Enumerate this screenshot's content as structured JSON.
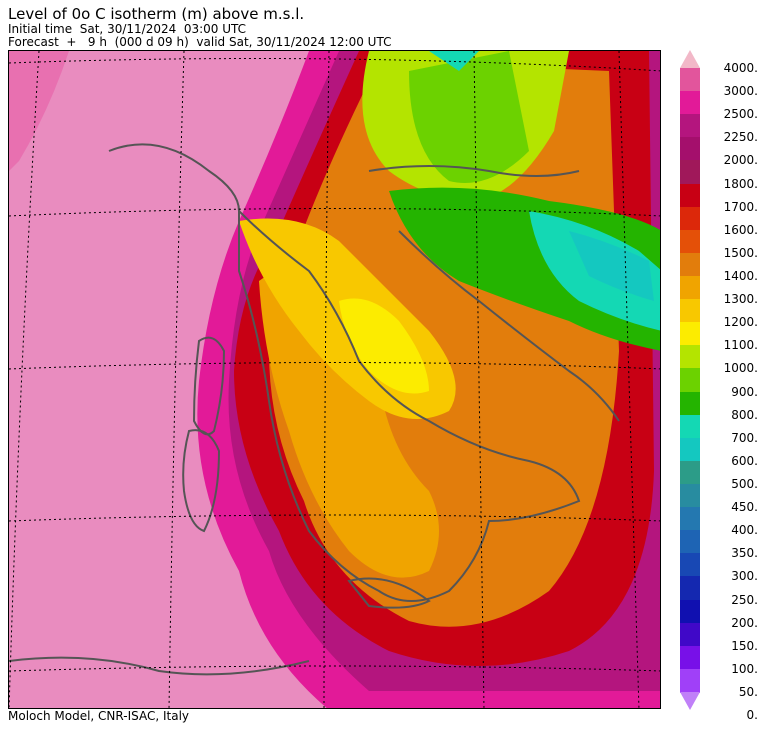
{
  "header": {
    "title": "Level of 0o C isotherm (m) above m.s.l.",
    "initial_time": "Initial time  Sat, 30/11/2024  03:00 UTC",
    "forecast": "Forecast  +   9 h  (000 d 09 h)  valid Sat, 30/11/2024 12:00 UTC"
  },
  "footer": {
    "credit": "Moloch Model, CNR-ISAC, Italy"
  },
  "legend": {
    "levels": [
      {
        "label": "4000.",
        "color": "#f2b8c8"
      },
      {
        "label": "3000.",
        "color": "#e2559c"
      },
      {
        "label": "2500.",
        "color": "#e21a98"
      },
      {
        "label": "2250.",
        "color": "#b4157e"
      },
      {
        "label": "2000.",
        "color": "#a40f6c"
      },
      {
        "label": "1800.",
        "color": "#a0185a"
      },
      {
        "label": "1700.",
        "color": "#c80014"
      },
      {
        "label": "1600.",
        "color": "#dc280a"
      },
      {
        "label": "1500.",
        "color": "#e45008"
      },
      {
        "label": "1400.",
        "color": "#e27d0c"
      },
      {
        "label": "1300.",
        "color": "#f0a400"
      },
      {
        "label": "1200.",
        "color": "#f8c800"
      },
      {
        "label": "1100.",
        "color": "#fcec00"
      },
      {
        "label": "1000.",
        "color": "#b4e400"
      },
      {
        "label": "900.",
        "color": "#6cd200"
      },
      {
        "label": "800.",
        "color": "#24b400"
      },
      {
        "label": "700.",
        "color": "#14d8b4"
      },
      {
        "label": "600.",
        "color": "#14c8c0"
      },
      {
        "label": "500.",
        "color": "#2c9c88"
      },
      {
        "label": "450.",
        "color": "#288ca0"
      },
      {
        "label": "400.",
        "color": "#2478b0"
      },
      {
        "label": "350.",
        "color": "#1e64b4"
      },
      {
        "label": "300.",
        "color": "#1848b4"
      },
      {
        "label": "250.",
        "color": "#1428b0"
      },
      {
        "label": "200.",
        "color": "#1010b0"
      },
      {
        "label": "150.",
        "color": "#4008c8"
      },
      {
        "label": "100.",
        "color": "#7810e8"
      },
      {
        "label": "50.",
        "color": "#a040f8"
      },
      {
        "label": "0.",
        "color": "#c080f8"
      }
    ]
  }
}
